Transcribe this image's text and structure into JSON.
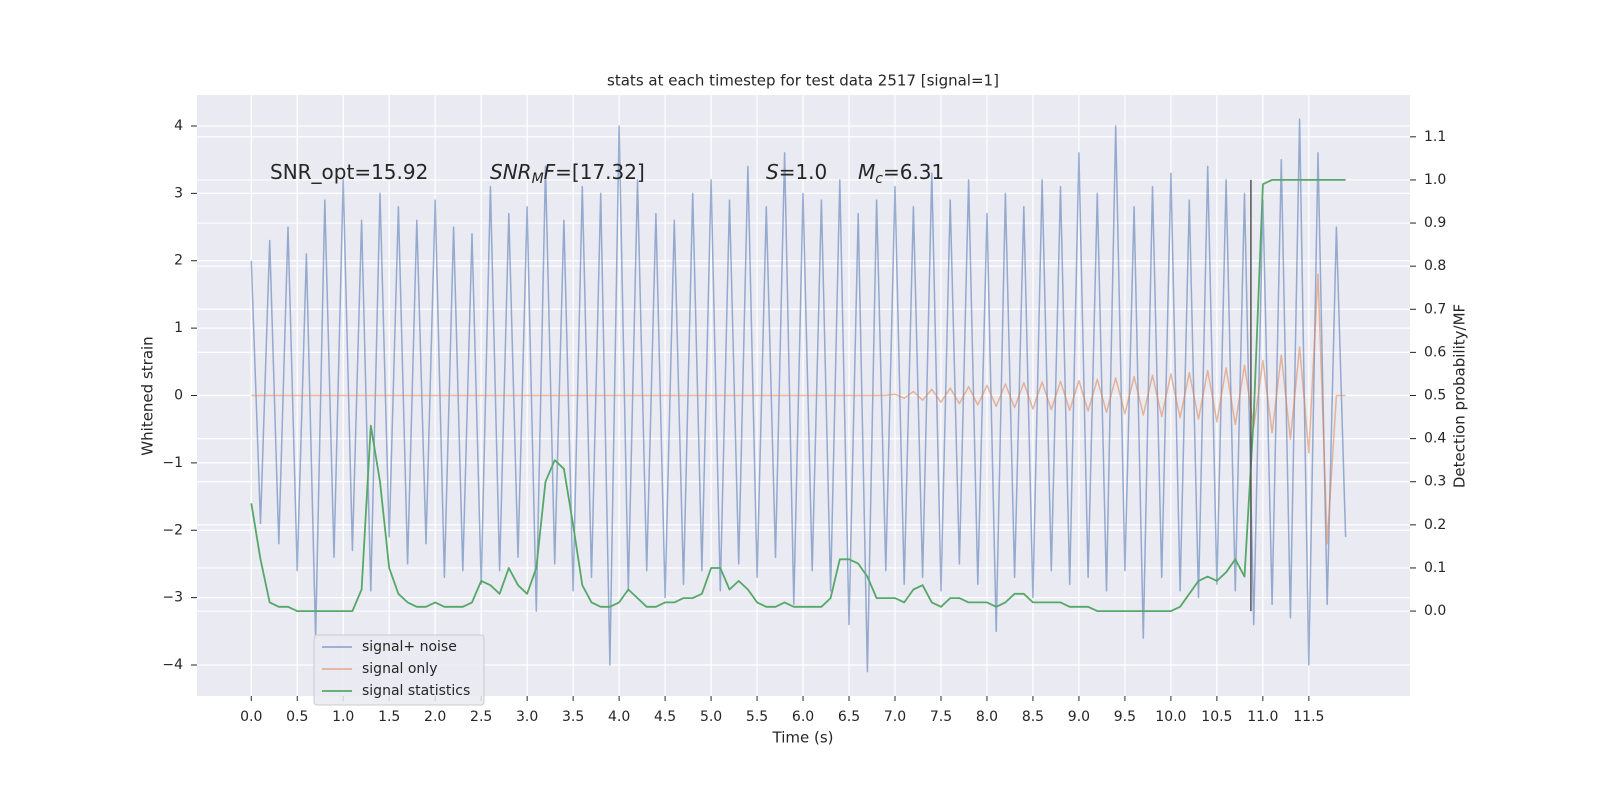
{
  "chart_data": {
    "type": "line",
    "title": "stats at each timestep for test data 2517 [signal=1]",
    "xlabel": "Time (s)",
    "ylabel": "Whitened strain",
    "y2label": "Detection probability/MF",
    "xlim": [
      -0.59,
      12.6
    ],
    "ylim": [
      -4.46,
      4.46
    ],
    "y2lim": [
      -0.197,
      1.197
    ],
    "xticks": [
      {
        "value": 0,
        "label": "0.0"
      },
      0.5,
      {
        "value": 1,
        "label": "1.0"
      },
      1.5,
      {
        "value": 2,
        "label": "2.0"
      },
      2.5,
      {
        "value": 3,
        "label": "3.0"
      },
      3.5,
      {
        "value": 4,
        "label": "4.0"
      },
      4.5,
      {
        "value": 5,
        "label": "5.0"
      },
      5.5,
      {
        "value": 6,
        "label": "6.0"
      },
      6.5,
      {
        "value": 7,
        "label": "7.0"
      },
      7.5,
      {
        "value": 8,
        "label": "8.0"
      },
      8.5,
      {
        "value": 9,
        "label": "9.0"
      },
      9.5,
      {
        "value": 10,
        "label": "10.0"
      },
      10.5,
      {
        "value": 11,
        "label": "11.0"
      },
      11.5
    ],
    "yticks": [
      {
        "value": -4,
        "label": "−4"
      },
      {
        "value": -3,
        "label": "−3"
      },
      {
        "value": -2,
        "label": "−2"
      },
      {
        "value": -1,
        "label": "−1"
      },
      0,
      1,
      2,
      3,
      4
    ],
    "y2ticks": [
      {
        "value": 0,
        "label": "0.0"
      },
      0.1,
      0.2,
      0.3,
      0.4,
      0.5,
      0.6,
      0.7,
      0.8,
      0.9,
      {
        "value": 1,
        "label": "1.0"
      },
      1.1
    ],
    "grid": true,
    "legend": "lower left",
    "x": [
      0.0,
      0.1,
      0.2,
      0.3,
      0.4,
      0.5,
      0.6,
      0.7,
      0.8,
      0.9,
      1.0,
      1.1,
      1.2,
      1.3,
      1.4,
      1.5,
      1.6,
      1.7,
      1.8,
      1.9,
      2.0,
      2.1,
      2.2,
      2.3,
      2.4,
      2.5,
      2.6,
      2.7,
      2.8,
      2.9,
      3.0,
      3.1,
      3.2,
      3.3,
      3.4,
      3.5,
      3.6,
      3.7,
      3.8,
      3.9,
      4.0,
      4.1,
      4.2,
      4.3,
      4.4,
      4.5,
      4.6,
      4.7,
      4.8,
      4.9,
      5.0,
      5.1,
      5.2,
      5.3,
      5.4,
      5.5,
      5.6,
      5.7,
      5.8,
      5.9,
      6.0,
      6.1,
      6.2,
      6.3,
      6.4,
      6.5,
      6.6,
      6.7,
      6.8,
      6.9,
      7.0,
      7.1,
      7.2,
      7.3,
      7.4,
      7.5,
      7.6,
      7.7,
      7.8,
      7.9,
      8.0,
      8.1,
      8.2,
      8.3,
      8.4,
      8.5,
      8.6,
      8.7,
      8.8,
      8.9,
      9.0,
      9.1,
      9.2,
      9.3,
      9.4,
      9.5,
      9.6,
      9.7,
      9.8,
      9.9,
      10.0,
      10.1,
      10.2,
      10.3,
      10.4,
      10.5,
      10.6,
      10.7,
      10.8,
      10.9,
      11.0,
      11.1,
      11.2,
      11.3,
      11.4,
      11.5,
      11.6,
      11.7,
      11.8,
      11.9
    ],
    "series": [
      {
        "name": "signal+ noise",
        "color": "#4c72b0",
        "values": [
          2.0,
          -1.9,
          2.3,
          -2.2,
          2.5,
          -2.6,
          2.1,
          -3.6,
          2.9,
          -2.4,
          3.2,
          -2.3,
          2.6,
          -2.9,
          3.0,
          -2.1,
          2.8,
          -2.5,
          2.6,
          -2.2,
          2.9,
          -2.7,
          2.5,
          -2.6,
          2.4,
          -2.8,
          3.1,
          -2.6,
          2.7,
          -2.4,
          2.8,
          -3.2,
          3.4,
          -2.5,
          2.6,
          -2.9,
          3.1,
          -2.7,
          3.0,
          -4.0,
          4.0,
          -2.9,
          3.2,
          -2.6,
          2.7,
          -3.0,
          2.6,
          -2.8,
          3.0,
          -2.6,
          3.2,
          -2.9,
          2.9,
          -2.5,
          3.4,
          -2.7,
          2.8,
          -2.4,
          3.6,
          -3.1,
          3.0,
          -2.6,
          2.9,
          -2.9,
          3.2,
          -3.4,
          2.7,
          -4.1,
          2.9,
          -2.6,
          3.1,
          -2.8,
          2.8,
          -2.7,
          3.3,
          -2.9,
          2.9,
          -2.5,
          3.2,
          -2.8,
          2.7,
          -3.5,
          3.0,
          -2.7,
          2.8,
          -3.0,
          3.2,
          -2.6,
          3.1,
          -2.8,
          3.6,
          -2.7,
          3.0,
          -2.9,
          4.0,
          -2.6,
          2.8,
          -3.6,
          3.1,
          -2.7,
          3.3,
          -2.9,
          2.9,
          -3.0,
          3.4,
          -2.8,
          3.2,
          -2.9,
          3.0,
          -3.4,
          2.9,
          -3.1,
          3.5,
          -3.3,
          4.1,
          -4.0,
          3.6,
          -3.1,
          2.5,
          -2.1
        ]
      },
      {
        "name": "signal only",
        "color": "#dd8452",
        "values": [
          0,
          0,
          0,
          0,
          0,
          0,
          0,
          0,
          0,
          0,
          0,
          0,
          0,
          0,
          0,
          0,
          0,
          0,
          0,
          0,
          0,
          0,
          0,
          0,
          0,
          0,
          0,
          0,
          0,
          0,
          0,
          0,
          0,
          0,
          0,
          0,
          0,
          0,
          0,
          0,
          0,
          0,
          0,
          0,
          0,
          0,
          0,
          0,
          0,
          0,
          0,
          0,
          0,
          0,
          0,
          0,
          0,
          0,
          0,
          0,
          0,
          0,
          0,
          0,
          0,
          0,
          0,
          0,
          0,
          0,
          0.02,
          -0.04,
          0.06,
          -0.07,
          0.09,
          -0.1,
          0.11,
          -0.12,
          0.13,
          -0.14,
          0.15,
          -0.16,
          0.17,
          -0.18,
          0.19,
          -0.2,
          0.2,
          -0.21,
          0.21,
          -0.22,
          0.22,
          -0.23,
          0.24,
          -0.25,
          0.26,
          -0.27,
          0.28,
          -0.29,
          0.3,
          -0.31,
          0.32,
          -0.33,
          0.34,
          -0.35,
          0.37,
          -0.39,
          0.41,
          -0.43,
          0.45,
          -0.47,
          0.52,
          -0.55,
          0.6,
          -0.65,
          0.72,
          -0.85,
          1.8,
          -2.2,
          0,
          0
        ]
      },
      {
        "name": "signal statistics",
        "color": "#55a868",
        "axis": "y2",
        "values": [
          0.25,
          0.12,
          0.02,
          0.01,
          0.01,
          0.0,
          0.0,
          0.0,
          0.0,
          0.0,
          0.0,
          0.0,
          0.05,
          0.43,
          0.3,
          0.1,
          0.04,
          0.02,
          0.01,
          0.01,
          0.02,
          0.01,
          0.01,
          0.01,
          0.02,
          0.07,
          0.06,
          0.04,
          0.1,
          0.06,
          0.04,
          0.1,
          0.3,
          0.35,
          0.33,
          0.2,
          0.06,
          0.02,
          0.01,
          0.01,
          0.02,
          0.05,
          0.03,
          0.01,
          0.01,
          0.02,
          0.02,
          0.03,
          0.03,
          0.04,
          0.1,
          0.1,
          0.05,
          0.07,
          0.05,
          0.02,
          0.01,
          0.01,
          0.02,
          0.01,
          0.01,
          0.01,
          0.01,
          0.03,
          0.12,
          0.12,
          0.11,
          0.08,
          0.03,
          0.03,
          0.03,
          0.02,
          0.05,
          0.06,
          0.02,
          0.01,
          0.03,
          0.03,
          0.02,
          0.02,
          0.02,
          0.01,
          0.02,
          0.04,
          0.04,
          0.02,
          0.02,
          0.02,
          0.02,
          0.01,
          0.01,
          0.01,
          0.0,
          0.0,
          0.0,
          0.0,
          0.0,
          0.0,
          0.0,
          0.0,
          0.0,
          0.01,
          0.04,
          0.07,
          0.08,
          0.07,
          0.09,
          0.12,
          0.08,
          0.45,
          0.99,
          1.0,
          1.0,
          1.0,
          1.0,
          1.0,
          1.0,
          1.0,
          1.0,
          1.0
        ]
      }
    ],
    "vline": {
      "x": 10.87,
      "y": [
        -3.2,
        3.2
      ],
      "color": "#555555"
    },
    "annotations": [
      {
        "parts": [
          {
            "t": "SNR_opt=15.92",
            "style": "normal"
          }
        ]
      },
      {
        "parts": [
          {
            "t": "SNR",
            "style": "italic"
          },
          {
            "t": "M",
            "style": "sub"
          },
          {
            "t": "F",
            "style": "italic"
          },
          {
            "t": "=[17.32]",
            "style": "normal"
          }
        ]
      },
      {
        "parts": [
          {
            "t": "S",
            "style": "italic"
          },
          {
            "t": "=1.0",
            "style": "normal"
          }
        ]
      },
      {
        "parts": [
          {
            "t": "M",
            "style": "italic"
          },
          {
            "t": "c",
            "style": "sub"
          },
          {
            "t": "=6.31",
            "style": "normal"
          }
        ]
      }
    ]
  }
}
